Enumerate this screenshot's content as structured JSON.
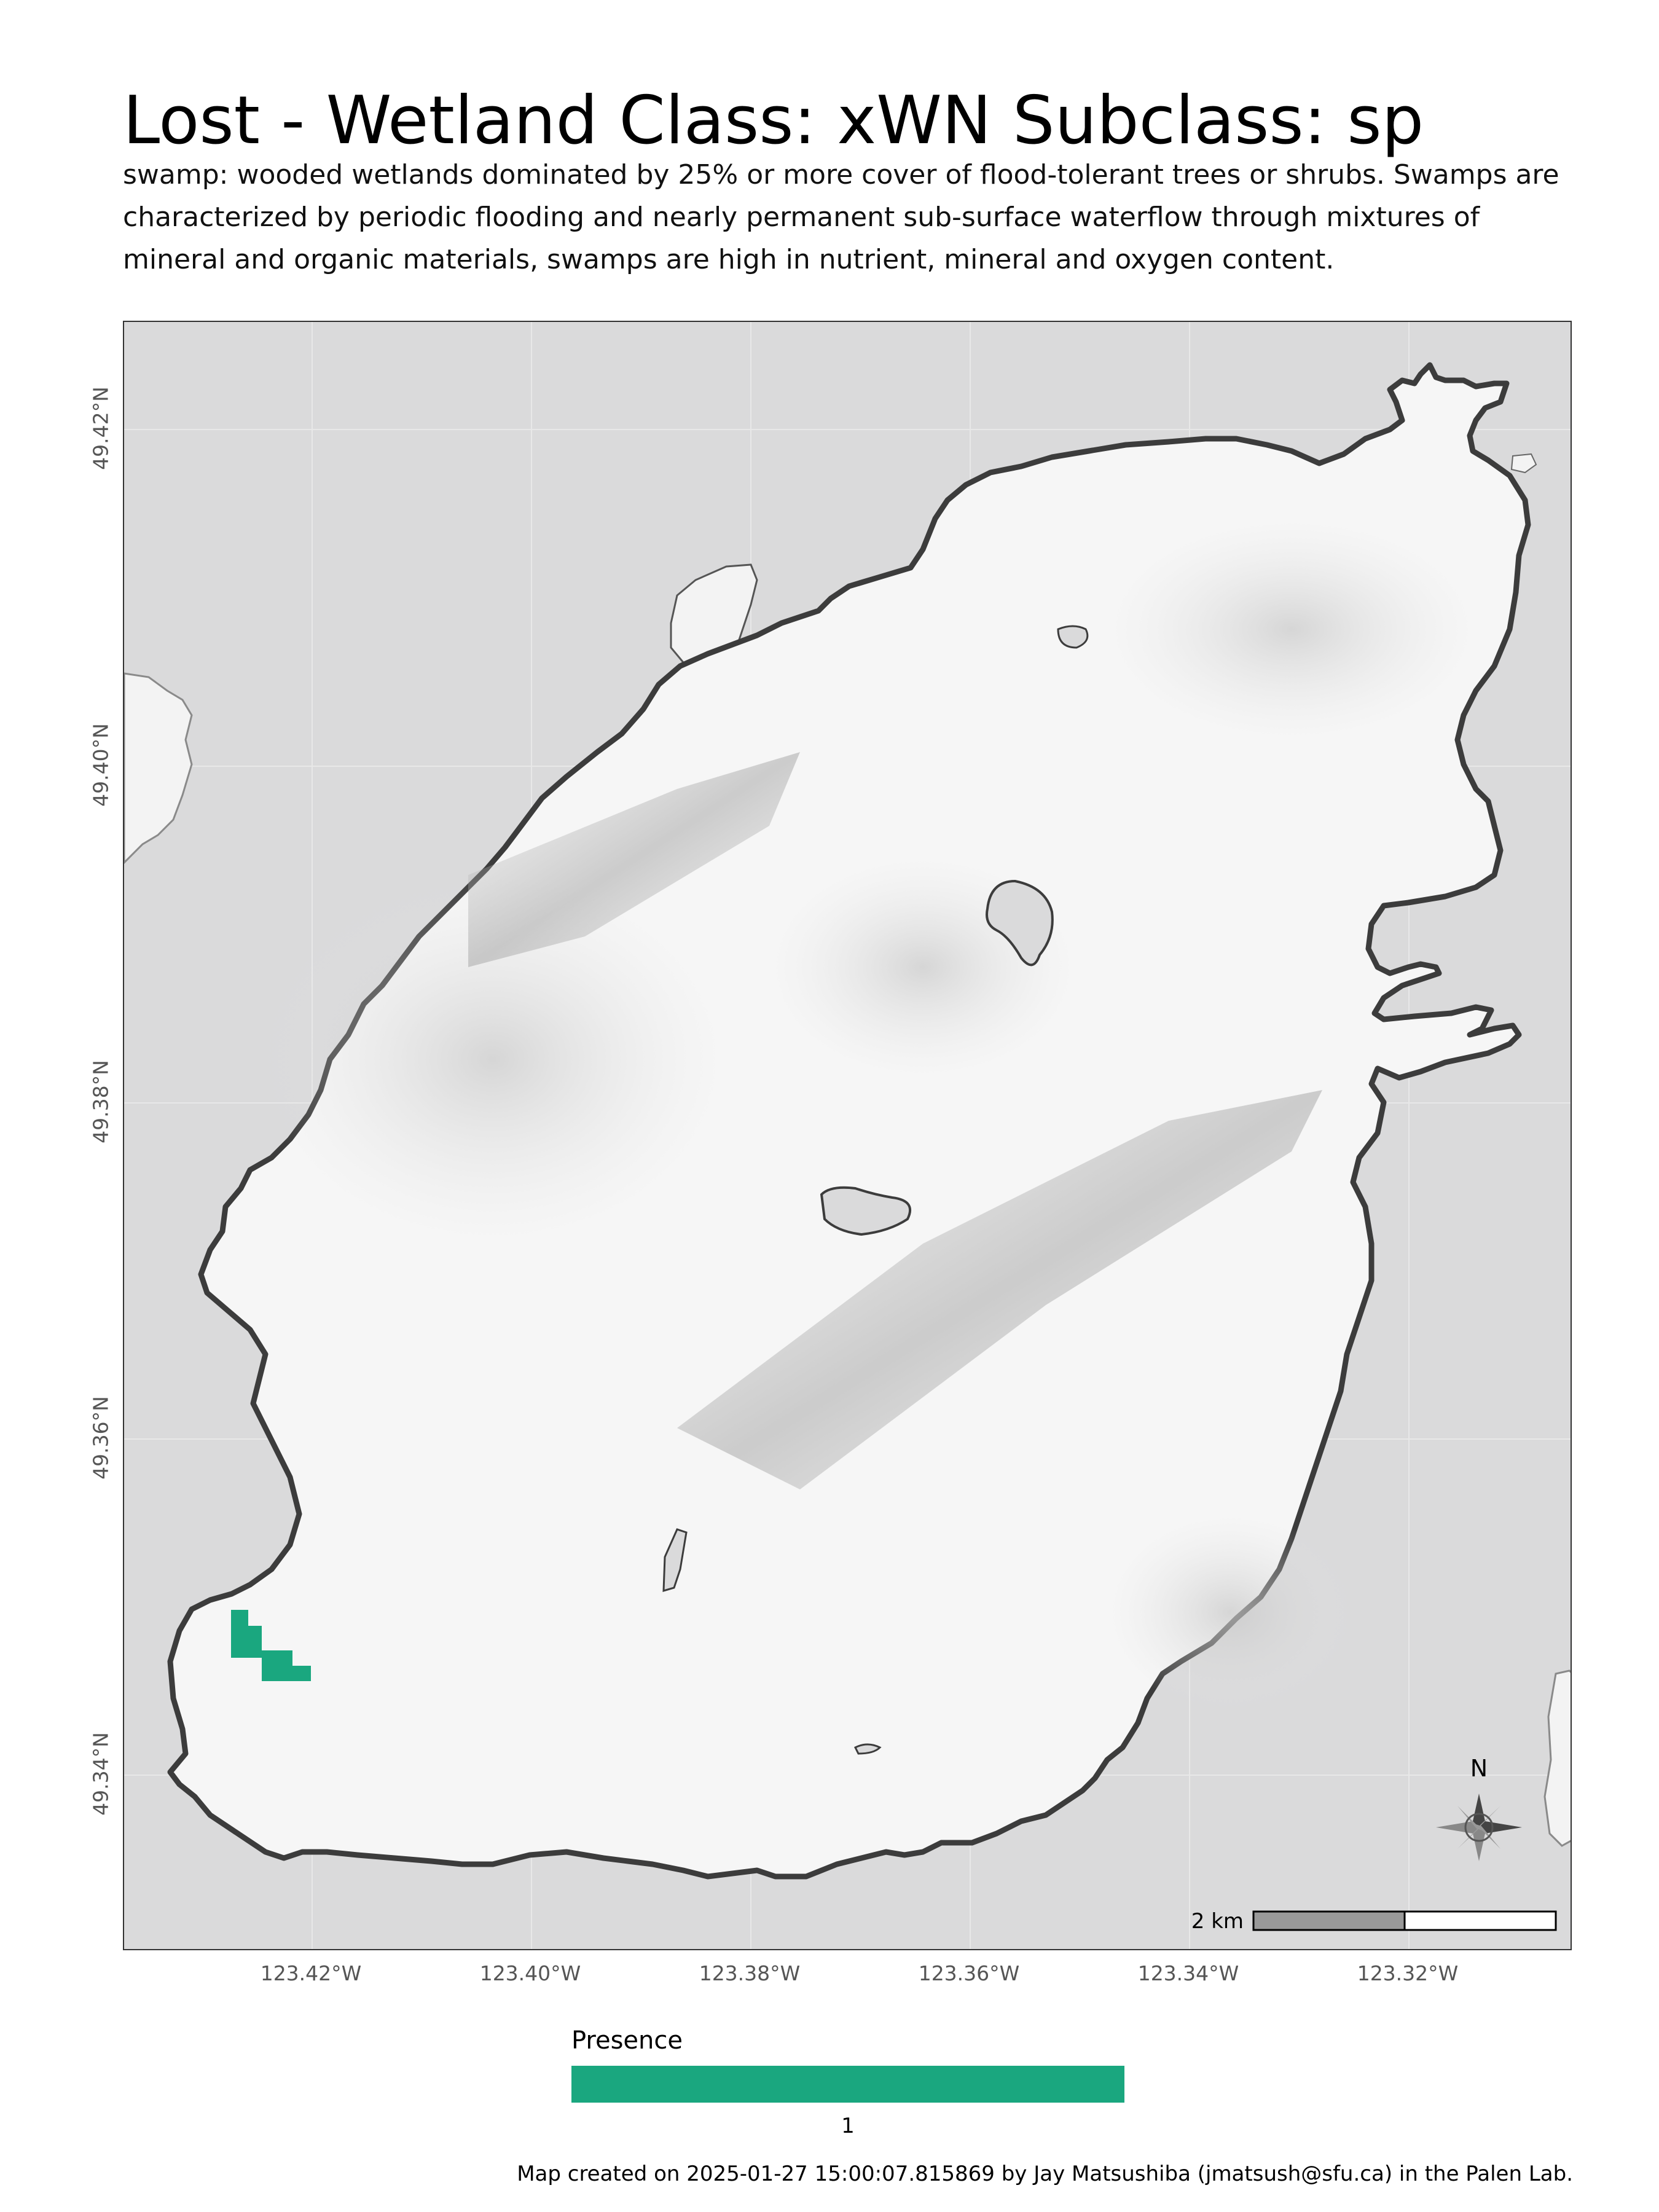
{
  "title": "Lost - Wetland Class: xWN Subclass: sp",
  "subtitle": "swamp: wooded wetlands dominated by 25% or more cover of flood-tolerant trees or shrubs. Swamps are characterized by periodic flooding and nearly permanent sub-surface waterflow through mixtures of mineral and organic materials, swamps are high in nutrient, mineral and oxygen content.",
  "map": {
    "latitude_ticks": [
      "49.42°N",
      "49.40°N",
      "49.38°N",
      "49.36°N",
      "49.34°N"
    ],
    "longitude_ticks": [
      "123.42°W",
      "123.40°W",
      "123.38°W",
      "123.36°W",
      "123.34°W",
      "123.32°W"
    ],
    "north_label": "N",
    "scale_bar_label": "2 km",
    "colors": {
      "water": "#dadadb",
      "land": "#f6f6f6",
      "coastline": "#3c3c3c",
      "presence": "#1aa77f"
    }
  },
  "legend": {
    "title": "Presence",
    "label": "1",
    "color": "#1aa77f"
  },
  "caption": "Map created on 2025-01-27 15:00:07.815869 by Jay Matsushiba (jmatsush@sfu.ca) in the Palen Lab."
}
